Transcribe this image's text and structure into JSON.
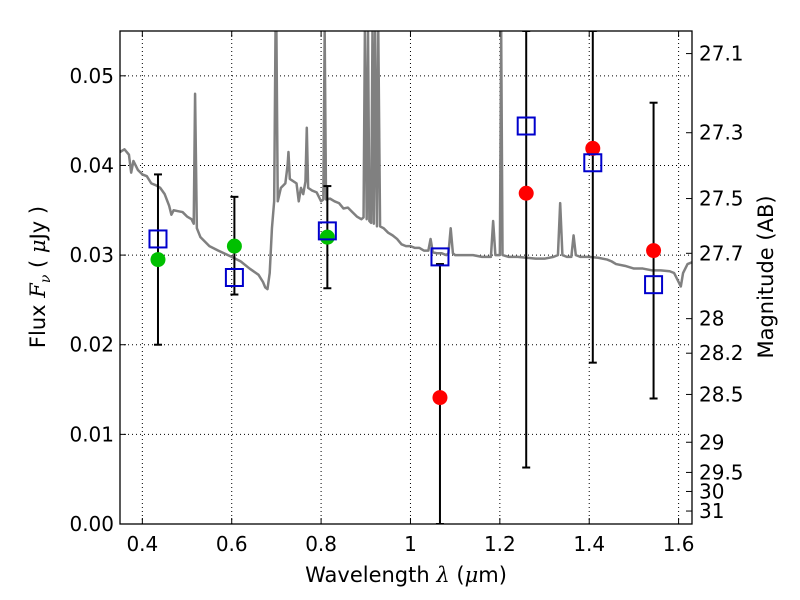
{
  "chart_data": {
    "type": "scatter",
    "xlabel_text": "Wavelength",
    "xlabel_symbol": "λ",
    "xlabel_unit_open": "(",
    "xlabel_unit_mu": "μ",
    "xlabel_unit_rest": "m)",
    "ylabel_text": "Flux",
    "ylabel_symbol": "F",
    "ylabel_sub": "ν",
    "ylabel_unit_open": "(",
    "ylabel_unit_mu": "μ",
    "ylabel_unit_rest": "Jy )",
    "y2label": "Magnitude (AB)",
    "xlim": [
      0.35,
      1.63
    ],
    "ylim": [
      0.0,
      0.055
    ],
    "grid": true,
    "x_ticks": [
      {
        "value": 0.4,
        "label": "0.4"
      },
      {
        "value": 0.6,
        "label": "0.6"
      },
      {
        "value": 0.8,
        "label": "0.8"
      },
      {
        "value": 1.0,
        "label": "1"
      },
      {
        "value": 1.2,
        "label": "1.2"
      },
      {
        "value": 1.4,
        "label": "1.4"
      },
      {
        "value": 1.6,
        "label": "1.6"
      }
    ],
    "y_ticks": [
      {
        "value": 0.0,
        "label": "0.00"
      },
      {
        "value": 0.01,
        "label": "0.01"
      },
      {
        "value": 0.02,
        "label": "0.02"
      },
      {
        "value": 0.03,
        "label": "0.03"
      },
      {
        "value": 0.04,
        "label": "0.04"
      },
      {
        "value": 0.05,
        "label": "0.05"
      }
    ],
    "mag_ticks": [
      {
        "value": 27.1,
        "label": "27.1"
      },
      {
        "value": 27.3,
        "label": "27.3"
      },
      {
        "value": 27.5,
        "label": "27.5"
      },
      {
        "value": 27.7,
        "label": "27.7"
      },
      {
        "value": 28.0,
        "label": "28"
      },
      {
        "value": 28.2,
        "label": "28.2"
      },
      {
        "value": 28.5,
        "label": "28.5"
      },
      {
        "value": 29.0,
        "label": "29"
      },
      {
        "value": 29.5,
        "label": "29.5"
      },
      {
        "value": 30.0,
        "label": "30"
      },
      {
        "value": 31.0,
        "label": "31"
      }
    ],
    "series": [
      {
        "marker": "circle",
        "color": "#00c000",
        "points": [
          {
            "x": 0.435,
            "y": 0.0295
          },
          {
            "x": 0.606,
            "y": 0.031
          },
          {
            "x": 0.814,
            "y": 0.032
          }
        ]
      },
      {
        "marker": "circle",
        "color": "#ff0000",
        "points": [
          {
            "x": 1.066,
            "y": 0.0141
          },
          {
            "x": 1.259,
            "y": 0.0369
          },
          {
            "x": 1.408,
            "y": 0.0419
          },
          {
            "x": 1.544,
            "y": 0.0305
          }
        ]
      },
      {
        "marker": "square-open",
        "color": "#0000cc",
        "points": [
          {
            "x": 0.435,
            "y": 0.0318,
            "err_low": 0.02,
            "err_high": 0.039
          },
          {
            "x": 0.606,
            "y": 0.0275,
            "err_low": 0.0256,
            "err_high": 0.0365
          },
          {
            "x": 0.814,
            "y": 0.0327,
            "err_low": 0.0263,
            "err_high": 0.0377
          },
          {
            "x": 1.066,
            "y": 0.0298,
            "err_low": 0.0,
            "err_high": 0.029
          },
          {
            "x": 1.259,
            "y": 0.0444,
            "err_low": 0.0063,
            "err_high": 0.055
          },
          {
            "x": 1.408,
            "y": 0.0403,
            "err_low": 0.018,
            "err_high": 0.055
          },
          {
            "x": 1.544,
            "y": 0.0267,
            "err_low": 0.014,
            "err_high": 0.047
          }
        ]
      },
      {
        "type": "line",
        "color": "#808080",
        "points": [
          [
            0.35,
            0.0415
          ],
          [
            0.36,
            0.0418
          ],
          [
            0.37,
            0.0412
          ],
          [
            0.375,
            0.0392
          ],
          [
            0.38,
            0.0405
          ],
          [
            0.39,
            0.0395
          ],
          [
            0.4,
            0.039
          ],
          [
            0.41,
            0.0388
          ],
          [
            0.42,
            0.038
          ],
          [
            0.43,
            0.0378
          ],
          [
            0.44,
            0.0375
          ],
          [
            0.45,
            0.0368
          ],
          [
            0.46,
            0.0355
          ],
          [
            0.465,
            0.0345
          ],
          [
            0.47,
            0.035
          ],
          [
            0.48,
            0.0349
          ],
          [
            0.49,
            0.0348
          ],
          [
            0.5,
            0.0343
          ],
          [
            0.51,
            0.034
          ],
          [
            0.515,
            0.0335
          ],
          [
            0.518,
            0.048
          ],
          [
            0.522,
            0.033
          ],
          [
            0.53,
            0.032
          ],
          [
            0.55,
            0.031
          ],
          [
            0.57,
            0.0305
          ],
          [
            0.6,
            0.0298
          ],
          [
            0.62,
            0.0293
          ],
          [
            0.64,
            0.0285
          ],
          [
            0.66,
            0.0278
          ],
          [
            0.67,
            0.027
          ],
          [
            0.675,
            0.0264
          ],
          [
            0.68,
            0.0262
          ],
          [
            0.685,
            0.028
          ],
          [
            0.69,
            0.033
          ],
          [
            0.695,
            0.036
          ],
          [
            0.698,
            0.055
          ],
          [
            0.7,
            0.055
          ],
          [
            0.703,
            0.036
          ],
          [
            0.71,
            0.0375
          ],
          [
            0.72,
            0.038
          ],
          [
            0.725,
            0.04
          ],
          [
            0.727,
            0.0415
          ],
          [
            0.73,
            0.0385
          ],
          [
            0.745,
            0.038
          ],
          [
            0.75,
            0.036
          ],
          [
            0.755,
            0.0375
          ],
          [
            0.76,
            0.0368
          ],
          [
            0.765,
            0.0382
          ],
          [
            0.768,
            0.0442
          ],
          [
            0.771,
            0.0375
          ],
          [
            0.78,
            0.0372
          ],
          [
            0.79,
            0.037
          ],
          [
            0.8,
            0.036
          ],
          [
            0.805,
            0.0362
          ],
          [
            0.808,
            0.055
          ],
          [
            0.811,
            0.0362
          ],
          [
            0.82,
            0.0363
          ],
          [
            0.83,
            0.036
          ],
          [
            0.84,
            0.0358
          ],
          [
            0.85,
            0.0352
          ],
          [
            0.86,
            0.0353
          ],
          [
            0.87,
            0.0348
          ],
          [
            0.88,
            0.0343
          ],
          [
            0.89,
            0.034
          ],
          [
            0.895,
            0.0342
          ],
          [
            0.898,
            0.055
          ],
          [
            0.902,
            0.034
          ],
          [
            0.905,
            0.055
          ],
          [
            0.908,
            0.0338
          ],
          [
            0.912,
            0.0336
          ],
          [
            0.915,
            0.055
          ],
          [
            0.918,
            0.0335
          ],
          [
            0.921,
            0.055
          ],
          [
            0.925,
            0.0332
          ],
          [
            0.928,
            0.055
          ],
          [
            0.932,
            0.0332
          ],
          [
            0.94,
            0.033
          ],
          [
            0.95,
            0.0325
          ],
          [
            0.96,
            0.0322
          ],
          [
            0.97,
            0.0318
          ],
          [
            0.98,
            0.0312
          ],
          [
            0.99,
            0.031
          ],
          [
            1.0,
            0.031
          ],
          [
            1.01,
            0.0308
          ],
          [
            1.02,
            0.0308
          ],
          [
            1.03,
            0.0305
          ],
          [
            1.04,
            0.0305
          ],
          [
            1.045,
            0.0318
          ],
          [
            1.05,
            0.0303
          ],
          [
            1.06,
            0.0302
          ],
          [
            1.07,
            0.0302
          ],
          [
            1.08,
            0.03
          ],
          [
            1.085,
            0.0302
          ],
          [
            1.09,
            0.033
          ],
          [
            1.095,
            0.0302
          ],
          [
            1.1,
            0.03
          ],
          [
            1.12,
            0.03
          ],
          [
            1.14,
            0.03
          ],
          [
            1.16,
            0.0298
          ],
          [
            1.18,
            0.0298
          ],
          [
            1.185,
            0.0338
          ],
          [
            1.19,
            0.03
          ],
          [
            1.2,
            0.03
          ],
          [
            1.203,
            0.055
          ],
          [
            1.206,
            0.03
          ],
          [
            1.22,
            0.0298
          ],
          [
            1.24,
            0.0298
          ],
          [
            1.26,
            0.0297
          ],
          [
            1.28,
            0.0296
          ],
          [
            1.3,
            0.0296
          ],
          [
            1.32,
            0.0298
          ],
          [
            1.33,
            0.03
          ],
          [
            1.335,
            0.0358
          ],
          [
            1.34,
            0.03
          ],
          [
            1.35,
            0.0298
          ],
          [
            1.36,
            0.0298
          ],
          [
            1.365,
            0.0322
          ],
          [
            1.37,
            0.03
          ],
          [
            1.38,
            0.0298
          ],
          [
            1.4,
            0.0298
          ],
          [
            1.42,
            0.0297
          ],
          [
            1.44,
            0.0295
          ],
          [
            1.45,
            0.0293
          ],
          [
            1.46,
            0.029
          ],
          [
            1.48,
            0.0288
          ],
          [
            1.5,
            0.0285
          ],
          [
            1.52,
            0.0285
          ],
          [
            1.54,
            0.0283
          ],
          [
            1.56,
            0.0283
          ],
          [
            1.58,
            0.0282
          ],
          [
            1.59,
            0.028
          ],
          [
            1.595,
            0.0275
          ],
          [
            1.6,
            0.027
          ],
          [
            1.605,
            0.0265
          ],
          [
            1.61,
            0.028
          ],
          [
            1.62,
            0.029
          ],
          [
            1.63,
            0.0292
          ]
        ]
      }
    ]
  }
}
